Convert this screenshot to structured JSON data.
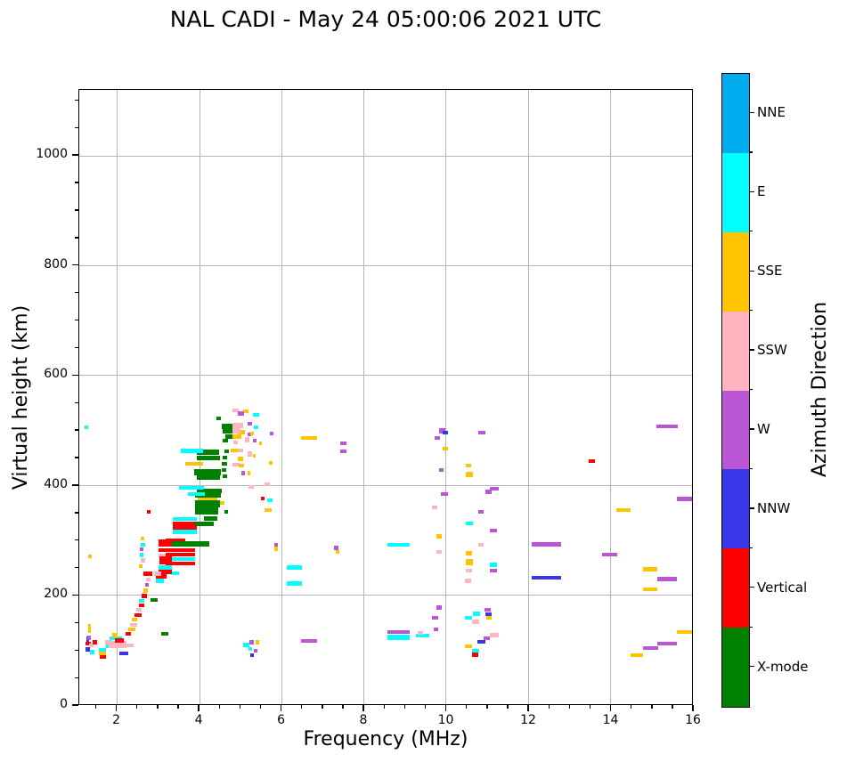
{
  "title": "NAL CADI - May 24 05:00:06 2021 UTC",
  "chart_data": {
    "type": "scatter",
    "title": "NAL CADI - May 24 05:00:06 2021 UTC",
    "xlabel": "Frequency (MHz)",
    "ylabel": "Virtual height (km)",
    "xlim": [
      1.08,
      16
    ],
    "ylim": [
      0,
      1120
    ],
    "x_major_ticks": [
      2,
      4,
      6,
      8,
      10,
      12,
      14,
      16
    ],
    "x_minor_step": 0.5,
    "y_major_ticks": [
      0,
      200,
      400,
      600,
      800,
      1000
    ],
    "y_minor_step": 50,
    "grid": true,
    "legend_position": "right-colorbar",
    "colorbar": {
      "label": "Azimuth Direction",
      "categories": [
        {
          "code": "N",
          "label": "NNE",
          "color": "#00AEEF"
        },
        {
          "code": "E",
          "label": "E",
          "color": "#00FFFF"
        },
        {
          "code": "S",
          "label": "SSE",
          "color": "#FFC400"
        },
        {
          "code": "P",
          "label": "SSW",
          "color": "#FFB6C1"
        },
        {
          "code": "W",
          "label": "W",
          "color": "#BA55D3"
        },
        {
          "code": "B",
          "label": "NNW",
          "color": "#3737E8"
        },
        {
          "code": "V",
          "label": "Vertical",
          "color": "#FF0000"
        },
        {
          "code": "X",
          "label": "X-mode",
          "color": "#008000"
        }
      ]
    },
    "points_format": [
      "freq_MHz",
      "height_km",
      "width_MHz",
      "direction_code",
      "thickness_km_optional"
    ],
    "points": [
      [
        1.21,
        505,
        0.09,
        "E"
      ],
      [
        1.3,
        270,
        0.09,
        "S"
      ],
      [
        1.3,
        138,
        0.07,
        "S",
        16
      ],
      [
        1.23,
        110,
        0.13,
        "V"
      ],
      [
        1.25,
        118,
        0.07,
        "B",
        10
      ],
      [
        1.23,
        100,
        0.11,
        "B"
      ],
      [
        1.27,
        121,
        0.09,
        "W"
      ],
      [
        1.32,
        107,
        0.11,
        "P"
      ],
      [
        1.34,
        95,
        0.11,
        "E"
      ],
      [
        1.41,
        113,
        0.11,
        "V"
      ],
      [
        1.56,
        99,
        0.17,
        "E"
      ],
      [
        1.56,
        92,
        0.17,
        "S"
      ],
      [
        1.57,
        86,
        0.17,
        "V"
      ],
      [
        1.71,
        113,
        0.17,
        "P"
      ],
      [
        1.73,
        105,
        0.22,
        "E"
      ],
      [
        1.82,
        120,
        0.3,
        "E"
      ],
      [
        1.8,
        109,
        0.43,
        "P",
        12
      ],
      [
        1.88,
        126,
        0.13,
        "S"
      ],
      [
        1.95,
        116,
        0.22,
        "V"
      ],
      [
        2.1,
        107,
        0.3,
        "P"
      ],
      [
        2.05,
        92,
        0.22,
        "B"
      ],
      [
        2.21,
        128,
        0.13,
        "V"
      ],
      [
        2.27,
        136,
        0.17,
        "S"
      ],
      [
        2.31,
        145,
        0.17,
        "P"
      ],
      [
        2.36,
        154,
        0.13,
        "S"
      ],
      [
        2.42,
        162,
        0.17,
        "V"
      ],
      [
        2.46,
        172,
        0.13,
        "P"
      ],
      [
        2.53,
        180,
        0.13,
        "V"
      ],
      [
        2.53,
        188,
        0.13,
        "E"
      ],
      [
        2.59,
        197,
        0.13,
        "V"
      ],
      [
        2.64,
        207,
        0.11,
        "S"
      ],
      [
        2.68,
        217,
        0.09,
        "W"
      ],
      [
        2.7,
        227,
        0.11,
        "P"
      ],
      [
        2.81,
        190,
        0.17,
        "X"
      ],
      [
        3.07,
        128,
        0.17,
        "X"
      ],
      [
        2.72,
        351,
        0.09,
        "V"
      ],
      [
        2.57,
        302,
        0.09,
        "S"
      ],
      [
        2.57,
        291,
        0.11,
        "E"
      ],
      [
        2.55,
        282,
        0.09,
        "W"
      ],
      [
        2.55,
        272,
        0.09,
        "E"
      ],
      [
        2.57,
        262,
        0.11,
        "P"
      ],
      [
        2.53,
        252,
        0.09,
        "S"
      ],
      [
        3.35,
        338,
        0.59,
        "E"
      ],
      [
        3.35,
        330,
        0.59,
        "V"
      ],
      [
        3.35,
        322,
        0.59,
        "V"
      ],
      [
        3.35,
        314,
        0.59,
        "E"
      ],
      [
        3.18,
        298,
        0.48,
        "V"
      ],
      [
        3.18,
        290,
        0.72,
        "E"
      ],
      [
        3.18,
        281,
        0.72,
        "V"
      ],
      [
        3.18,
        273,
        0.72,
        "V"
      ],
      [
        3.29,
        265,
        0.61,
        "E"
      ],
      [
        3.18,
        256,
        0.72,
        "V"
      ],
      [
        3.01,
        294,
        0.33,
        "V",
        12
      ],
      [
        3.01,
        281,
        0.33,
        "V"
      ],
      [
        3.01,
        271,
        0.17,
        "P"
      ],
      [
        3.03,
        262,
        0.3,
        "V",
        14
      ],
      [
        3.01,
        249,
        0.33,
        "E"
      ],
      [
        3.01,
        241,
        0.33,
        "V"
      ],
      [
        2.95,
        233,
        0.26,
        "V"
      ],
      [
        2.95,
        225,
        0.2,
        "E"
      ],
      [
        2.64,
        238,
        0.22,
        "V"
      ],
      [
        2.9,
        238,
        0.17,
        "P"
      ],
      [
        3.33,
        239,
        0.17,
        "E"
      ],
      [
        3.29,
        290,
        0.22,
        "V"
      ],
      [
        3.33,
        292,
        0.91,
        "X",
        9
      ],
      [
        3.96,
        373,
        0.48,
        "S"
      ],
      [
        3.9,
        366,
        0.61,
        "X",
        13
      ],
      [
        3.9,
        352,
        0.57,
        "X",
        12
      ],
      [
        4.61,
        351,
        0.09,
        "X"
      ],
      [
        4.5,
        367,
        0.11,
        "S"
      ],
      [
        3.91,
        329,
        0.45,
        "X",
        8
      ],
      [
        4.11,
        339,
        0.33,
        "X",
        8
      ],
      [
        3.94,
        459,
        0.54,
        "X",
        9
      ],
      [
        3.94,
        449,
        0.56,
        "X",
        9
      ],
      [
        3.87,
        423,
        0.65,
        "X",
        11
      ],
      [
        3.94,
        413,
        0.56,
        "X",
        8
      ],
      [
        3.94,
        389,
        0.61,
        "X",
        9
      ],
      [
        3.91,
        381,
        0.61,
        "X",
        8
      ],
      [
        3.55,
        462,
        0.55,
        "E"
      ],
      [
        3.65,
        438,
        0.45,
        "S"
      ],
      [
        3.5,
        394,
        0.61,
        "E"
      ],
      [
        3.72,
        383,
        0.41,
        "E"
      ],
      [
        4.54,
        507,
        0.41,
        "X",
        10
      ],
      [
        4.58,
        498,
        0.26,
        "X",
        9
      ],
      [
        4.63,
        488,
        0.17,
        "X",
        8
      ],
      [
        4.43,
        521,
        0.09,
        "X"
      ],
      [
        4.58,
        481,
        0.13,
        "X"
      ],
      [
        4.61,
        461,
        0.11,
        "X"
      ],
      [
        4.58,
        450,
        0.11,
        "X"
      ],
      [
        4.56,
        438,
        0.13,
        "X"
      ],
      [
        4.54,
        427,
        0.11,
        "X"
      ],
      [
        4.58,
        416,
        0.09,
        "X"
      ],
      [
        4.8,
        536,
        0.17,
        "P"
      ],
      [
        5.08,
        534,
        0.13,
        "S"
      ],
      [
        4.95,
        530,
        0.15,
        "W"
      ],
      [
        5.3,
        528,
        0.17,
        "E"
      ],
      [
        4.95,
        508,
        0.13,
        "P",
        10
      ],
      [
        5.34,
        505,
        0.09,
        "E"
      ],
      [
        5.17,
        511,
        0.11,
        "W"
      ],
      [
        4.95,
        496,
        0.17,
        "S"
      ],
      [
        5.17,
        492,
        0.09,
        "W"
      ],
      [
        5.25,
        493,
        0.07,
        "S"
      ],
      [
        4.82,
        503,
        0.19,
        "P",
        20
      ],
      [
        4.8,
        488,
        0.22,
        "S"
      ],
      [
        5.12,
        482,
        0.11,
        "P",
        10
      ],
      [
        5.3,
        481,
        0.09,
        "W"
      ],
      [
        5.45,
        476,
        0.07,
        "S"
      ],
      [
        4.84,
        477,
        0.11,
        "P"
      ],
      [
        4.76,
        463,
        0.17,
        "S"
      ],
      [
        4.93,
        463,
        0.13,
        "P"
      ],
      [
        5.17,
        456,
        0.11,
        "P",
        10
      ],
      [
        5.3,
        453,
        0.07,
        "S"
      ],
      [
        4.93,
        447,
        0.15,
        "S"
      ],
      [
        4.82,
        437,
        0.17,
        "P"
      ],
      [
        4.97,
        435,
        0.13,
        "S"
      ],
      [
        5.02,
        421,
        0.09,
        "W"
      ],
      [
        5.17,
        421,
        0.07,
        "S"
      ],
      [
        5.71,
        494,
        0.09,
        "W"
      ],
      [
        5.69,
        440,
        0.09,
        "S"
      ],
      [
        5.51,
        375,
        0.09,
        "V"
      ],
      [
        5.19,
        396,
        0.15,
        "P"
      ],
      [
        5.58,
        401,
        0.13,
        "P"
      ],
      [
        5.66,
        372,
        0.13,
        "E"
      ],
      [
        5.6,
        354,
        0.17,
        "S"
      ],
      [
        5.06,
        108,
        0.17,
        "E"
      ],
      [
        5.23,
        113,
        0.09,
        "W"
      ],
      [
        5.38,
        113,
        0.07,
        "S"
      ],
      [
        5.19,
        101,
        0.09,
        "E"
      ],
      [
        5.25,
        89,
        0.09,
        "B"
      ],
      [
        5.32,
        97,
        0.09,
        "W"
      ],
      [
        6.14,
        249,
        0.35,
        "E"
      ],
      [
        6.14,
        220,
        0.35,
        "E"
      ],
      [
        6.49,
        485,
        0.37,
        "S"
      ],
      [
        6.49,
        115,
        0.37,
        "W"
      ],
      [
        5.82,
        291,
        0.09,
        "W"
      ],
      [
        5.82,
        283,
        0.09,
        "S"
      ],
      [
        7.29,
        285,
        0.09,
        "W"
      ],
      [
        7.33,
        278,
        0.09,
        "S"
      ],
      [
        7.44,
        476,
        0.15,
        "W"
      ],
      [
        7.44,
        461,
        0.15,
        "W"
      ],
      [
        8.58,
        291,
        0.54,
        "E"
      ],
      [
        8.58,
        131,
        0.54,
        "W"
      ],
      [
        8.58,
        122,
        0.54,
        "E",
        10
      ],
      [
        9.28,
        125,
        0.32,
        "E"
      ],
      [
        9.32,
        130,
        0.13,
        "P"
      ],
      [
        9.71,
        136,
        0.11,
        "W"
      ],
      [
        9.77,
        176,
        0.13,
        "W"
      ],
      [
        9.66,
        157,
        0.15,
        "W"
      ],
      [
        10.66,
        165,
        0.17,
        "E"
      ],
      [
        10.47,
        157,
        0.17,
        "E"
      ],
      [
        10.94,
        172,
        0.15,
        "W"
      ],
      [
        10.96,
        164,
        0.15,
        "B"
      ],
      [
        10.98,
        158,
        0.13,
        "S"
      ],
      [
        10.64,
        150,
        0.17,
        "P"
      ],
      [
        11.07,
        126,
        0.22,
        "P"
      ],
      [
        10.92,
        120,
        0.15,
        "W"
      ],
      [
        10.77,
        114,
        0.19,
        "B"
      ],
      [
        10.47,
        105,
        0.17,
        "S"
      ],
      [
        10.64,
        97,
        0.17,
        "E"
      ],
      [
        10.64,
        90,
        0.15,
        "V"
      ],
      [
        10.47,
        225,
        0.15,
        "P"
      ],
      [
        9.77,
        278,
        0.13,
        "P"
      ],
      [
        10.49,
        275,
        0.15,
        "S"
      ],
      [
        10.49,
        259,
        0.17,
        "S",
        10
      ],
      [
        11.07,
        254,
        0.17,
        "E"
      ],
      [
        11.07,
        244,
        0.17,
        "W"
      ],
      [
        10.49,
        244,
        0.15,
        "P"
      ],
      [
        9.77,
        306,
        0.13,
        "S"
      ],
      [
        10.79,
        290,
        0.13,
        "P"
      ],
      [
        11.07,
        317,
        0.17,
        "W"
      ],
      [
        10.79,
        351,
        0.13,
        "W"
      ],
      [
        9.88,
        383,
        0.17,
        "W"
      ],
      [
        9.66,
        359,
        0.13,
        "P"
      ],
      [
        10.49,
        330,
        0.17,
        "E"
      ],
      [
        10.49,
        435,
        0.13,
        "S"
      ],
      [
        10.49,
        419,
        0.17,
        "S",
        10
      ],
      [
        11.07,
        393,
        0.22,
        "W"
      ],
      [
        10.96,
        387,
        0.15,
        "W"
      ],
      [
        9.84,
        498,
        0.15,
        "W",
        10
      ],
      [
        9.92,
        495,
        0.13,
        "B"
      ],
      [
        9.73,
        485,
        0.13,
        "W"
      ],
      [
        9.92,
        466,
        0.13,
        "S"
      ],
      [
        9.84,
        427,
        0.11,
        "W"
      ],
      [
        10.79,
        495,
        0.17,
        "W"
      ],
      [
        12.09,
        291,
        0.71,
        "W",
        9
      ],
      [
        12.09,
        230,
        0.71,
        "B"
      ],
      [
        13.49,
        443,
        0.15,
        "V"
      ],
      [
        15.13,
        506,
        0.52,
        "W"
      ],
      [
        15.63,
        374,
        0.41,
        "W"
      ],
      [
        14.16,
        354,
        0.35,
        "S"
      ],
      [
        13.82,
        273,
        0.35,
        "W"
      ],
      [
        14.81,
        246,
        0.35,
        "S"
      ],
      [
        15.16,
        228,
        0.48,
        "W"
      ],
      [
        14.81,
        209,
        0.35,
        "S"
      ],
      [
        15.63,
        131,
        0.39,
        "S"
      ],
      [
        15.16,
        110,
        0.48,
        "W"
      ],
      [
        14.81,
        102,
        0.37,
        "W"
      ],
      [
        14.51,
        89,
        0.3,
        "S"
      ]
    ]
  }
}
